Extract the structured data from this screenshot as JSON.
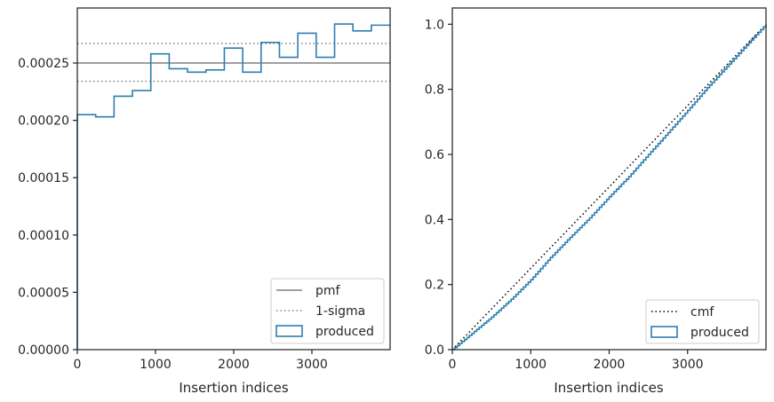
{
  "chart_data": [
    {
      "type": "line",
      "xlabel": "Insertion indices",
      "ylabel": "",
      "xlim": [
        0,
        4000
      ],
      "ylim": [
        0,
        0.000298
      ],
      "xticks": [
        0,
        1000,
        2000,
        3000
      ],
      "xtick_labels": [
        "0",
        "1000",
        "2000",
        "3000"
      ],
      "yticks": [
        0,
        5e-05,
        0.0001,
        0.00015,
        0.0002,
        0.00025
      ],
      "ytick_labels": [
        "0.00000",
        "0.00005",
        "0.00010",
        "0.00015",
        "0.00020",
        "0.00025"
      ],
      "legend_position": "lower-right",
      "series": [
        {
          "name": "pmf",
          "style": "solid",
          "color": "#808080",
          "y": 0.00025
        },
        {
          "name": "1-sigma",
          "style": "dotted",
          "color": "#808080",
          "y_values": [
            0.000267,
            0.000234
          ]
        },
        {
          "name": "produced",
          "style": "step-histogram",
          "color": "#2e7eb0",
          "bin_edges": [
            0,
            235,
            470,
            705,
            940,
            1175,
            1410,
            1645,
            1880,
            2115,
            2350,
            2585,
            2820,
            3055,
            3290,
            3525,
            3760,
            4000
          ],
          "values": [
            0.000205,
            0.000203,
            0.000221,
            0.000226,
            0.000258,
            0.000245,
            0.000242,
            0.000244,
            0.000263,
            0.000242,
            0.000268,
            0.000255,
            0.000276,
            0.000255,
            0.000284,
            0.000278,
            0.000283
          ]
        }
      ]
    },
    {
      "type": "line",
      "xlabel": "Insertion indices",
      "ylabel": "",
      "xlim": [
        0,
        4000
      ],
      "ylim": [
        0,
        1.05
      ],
      "xticks": [
        0,
        1000,
        2000,
        3000
      ],
      "xtick_labels": [
        "0",
        "1000",
        "2000",
        "3000"
      ],
      "yticks": [
        0,
        0.2,
        0.4,
        0.6,
        0.8,
        1.0
      ],
      "ytick_labels": [
        "0.0",
        "0.2",
        "0.4",
        "0.6",
        "0.8",
        "1.0"
      ],
      "legend_position": "lower-right",
      "series": [
        {
          "name": "cmf",
          "style": "dotted",
          "color": "#000000",
          "x": [
            0,
            4000
          ],
          "values": [
            0,
            1.0
          ]
        },
        {
          "name": "produced",
          "style": "step",
          "color": "#2e7eb0",
          "x": [
            0,
            250,
            500,
            750,
            1000,
            1250,
            1500,
            1750,
            2000,
            2250,
            2500,
            2750,
            3000,
            3250,
            3500,
            3750,
            4000
          ],
          "values": [
            0,
            0.05,
            0.1,
            0.155,
            0.215,
            0.283,
            0.345,
            0.405,
            0.47,
            0.532,
            0.6,
            0.667,
            0.735,
            0.805,
            0.87,
            0.935,
            1.0
          ]
        }
      ]
    }
  ]
}
